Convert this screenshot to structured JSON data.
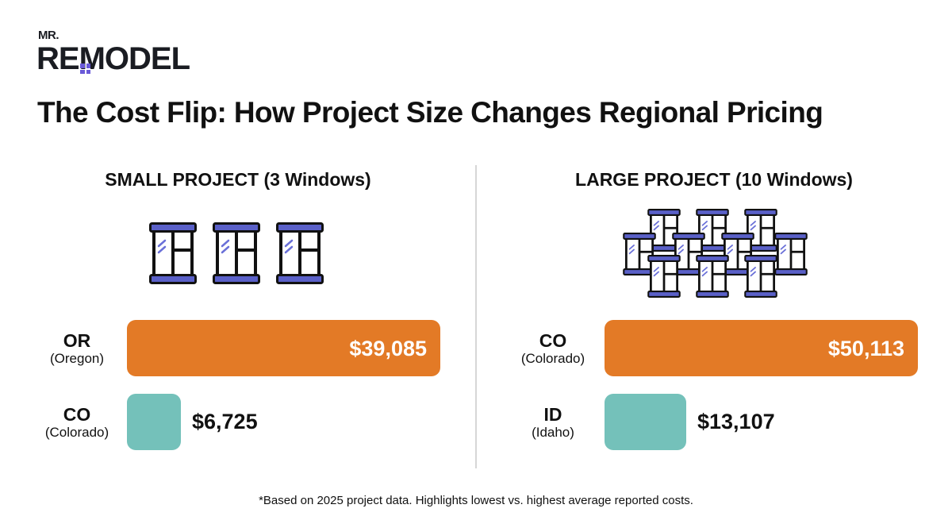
{
  "logo": {
    "top": "MR.",
    "main": "REMODEL"
  },
  "title": "The Cost Flip: How Project Size Changes Regional Pricing",
  "colors": {
    "high": "#E37A26",
    "low": "#74C1BA",
    "window_accent": "#5a60c8"
  },
  "chart_data": [
    {
      "type": "bar",
      "orientation": "horizontal",
      "title": "SMALL PROJECT (3 Windows)",
      "icon": "window-icon",
      "icon_count": 3,
      "categories": [
        {
          "code": "OR",
          "name": "(Oregon)"
        },
        {
          "code": "CO",
          "name": "(Colorado)"
        }
      ],
      "values": [
        39085,
        6725
      ],
      "value_labels": [
        "$39,085",
        "$6,725"
      ]
    },
    {
      "type": "bar",
      "orientation": "horizontal",
      "title": "LARGE PROJECT (10 Windows)",
      "icon": "window-icon",
      "icon_count": 10,
      "categories": [
        {
          "code": "CO",
          "name": "(Colorado)"
        },
        {
          "code": "ID",
          "name": "(Idaho)"
        }
      ],
      "values": [
        50113,
        13107
      ],
      "value_labels": [
        "$50,113",
        "$13,107"
      ]
    }
  ],
  "footnote": "*Based on 2025 project data. Highlights lowest vs. highest average reported costs."
}
